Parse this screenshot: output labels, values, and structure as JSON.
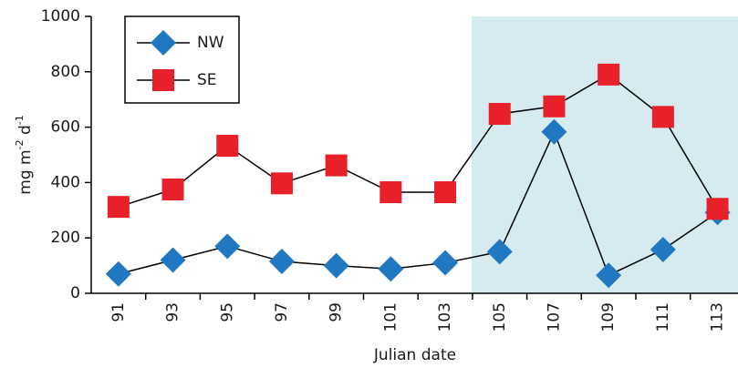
{
  "chart_data": {
    "type": "line",
    "y_label": [
      "mg m",
      "-2",
      " d",
      "-1"
    ],
    "x_label": "Julian date",
    "categories": [
      "91",
      "93",
      "95",
      "97",
      "99",
      "101",
      "103",
      "105",
      "107",
      "109",
      "111",
      "113"
    ],
    "series": [
      {
        "name": "NW",
        "color": "#1f78c1",
        "marker": "diamond",
        "values": [
          70,
          120,
          170,
          115,
          100,
          88,
          110,
          150,
          583,
          65,
          158,
          292
        ]
      },
      {
        "name": "SE",
        "color": "#e8202a",
        "marker": "square",
        "values": [
          312,
          375,
          533,
          397,
          462,
          365,
          365,
          648,
          675,
          790,
          637,
          305
        ]
      }
    ],
    "ylim": [
      0,
      1000
    ],
    "yticks": [
      0,
      200,
      400,
      600,
      800,
      1000
    ],
    "grid": false
  }
}
